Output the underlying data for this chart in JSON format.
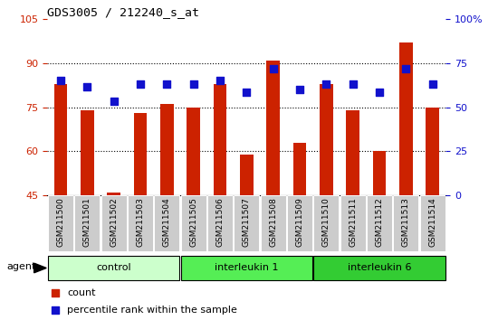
{
  "title": "GDS3005 / 212240_s_at",
  "samples": [
    "GSM211500",
    "GSM211501",
    "GSM211502",
    "GSM211503",
    "GSM211504",
    "GSM211505",
    "GSM211506",
    "GSM211507",
    "GSM211508",
    "GSM211509",
    "GSM211510",
    "GSM211511",
    "GSM211512",
    "GSM211513",
    "GSM211514"
  ],
  "count_values": [
    83,
    74,
    46,
    73,
    76,
    75,
    83,
    59,
    91,
    63,
    83,
    74,
    60,
    97,
    75
  ],
  "percentile_values": [
    84,
    82,
    77,
    83,
    83,
    83,
    84,
    80,
    88,
    81,
    83,
    83,
    80,
    88,
    83
  ],
  "bar_color": "#cc2200",
  "dot_color": "#1111cc",
  "ylim_left": [
    45,
    105
  ],
  "ylim_right": [
    0,
    100
  ],
  "yticks_left": [
    45,
    60,
    75,
    90,
    105
  ],
  "ytick_labels_left": [
    "45",
    "60",
    "75",
    "90",
    "105"
  ],
  "yticks_right": [
    0,
    25,
    50,
    75,
    100
  ],
  "ytick_labels_right": [
    "0",
    "25",
    "50",
    "75",
    "100%"
  ],
  "groups": [
    {
      "label": "control",
      "start": 0,
      "end": 4,
      "color": "#ccffcc"
    },
    {
      "label": "interleukin 1",
      "start": 5,
      "end": 9,
      "color": "#55ee55"
    },
    {
      "label": "interleukin 6",
      "start": 10,
      "end": 14,
      "color": "#33cc33"
    }
  ],
  "agent_label": "agent",
  "legend_count_label": "count",
  "legend_pct_label": "percentile rank within the sample",
  "bg_color": "#ffffff",
  "plot_bg_color": "#ffffff",
  "tick_label_bg": "#cccccc",
  "bar_width": 0.5,
  "dot_size": 28
}
